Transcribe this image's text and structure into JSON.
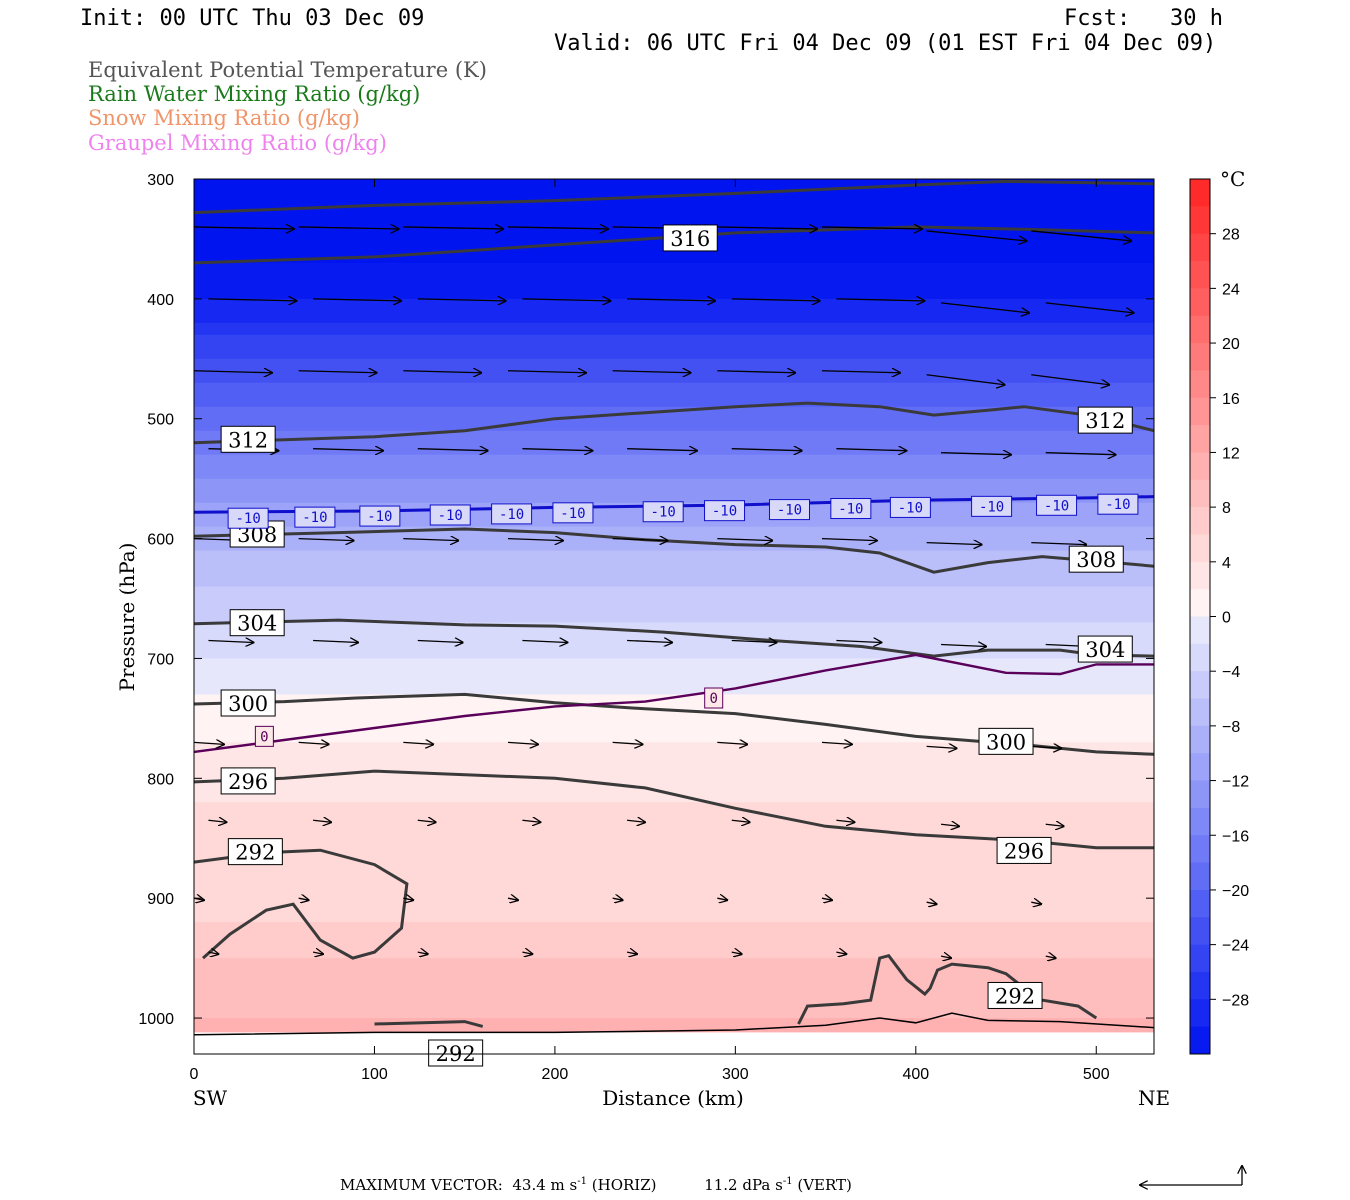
{
  "header": {
    "init": "Init: 00 UTC Thu 03 Dec 09",
    "fcst": "Fcst:   30 h",
    "valid": "Valid: 06 UTC Fri 04 Dec 09 (01 EST Fri 04 Dec 09)"
  },
  "legend": [
    {
      "label": "Equivalent Potential Temperature (K)",
      "color": "#555555"
    },
    {
      "label": "Rain Water Mixing Ratio (g/kg)",
      "color": "#1a7a1a"
    },
    {
      "label": "Snow Mixing Ratio (g/kg)",
      "color": "#f0946a"
    },
    {
      "label": "Graupel Mixing Ratio (g/kg)",
      "color": "#ee82ee"
    }
  ],
  "footer": {
    "max_vector_label": "MAXIMUM VECTOR:",
    "horiz_value": "43.4 m s",
    "horiz_exp": "-1",
    "horiz_tag": "(HORIZ)",
    "vert_value": "11.2 dPa s",
    "vert_exp": "-1",
    "vert_tag": "(VERT)"
  },
  "chart_data": {
    "type": "cross-section",
    "xlabel": "Distance (km)",
    "ylabel": "Pressure (hPa)",
    "x_left_label": "SW",
    "x_right_label": "NE",
    "xlim": [
      0,
      532
    ],
    "ylim": [
      1030,
      300
    ],
    "x_ticks": [
      0,
      100,
      200,
      300,
      400,
      500
    ],
    "y_ticks": [
      300,
      400,
      500,
      600,
      700,
      800,
      900,
      1000
    ],
    "colorbar": {
      "unit": "°C",
      "range": [
        -32,
        32
      ],
      "ticks": [
        28,
        24,
        20,
        16,
        12,
        8,
        4,
        0,
        -4,
        -8,
        -12,
        -16,
        -20,
        -24,
        -28
      ]
    },
    "temperature_shading": [
      {
        "p": 300,
        "t": -36
      },
      {
        "p": 340,
        "t": -34
      },
      {
        "p": 400,
        "t": -30
      },
      {
        "p": 450,
        "t": -24
      },
      {
        "p": 500,
        "t": -19
      },
      {
        "p": 550,
        "t": -14
      },
      {
        "p": 600,
        "t": -9
      },
      {
        "p": 650,
        "t": -5
      },
      {
        "p": 700,
        "t": -2
      },
      {
        "p": 750,
        "t": 1
      },
      {
        "p": 800,
        "t": 3
      },
      {
        "p": 850,
        "t": 5
      },
      {
        "p": 900,
        "t": 5
      },
      {
        "p": 950,
        "t": 8
      },
      {
        "p": 1000,
        "t": 10
      },
      {
        "p": 1030,
        "t": 12
      }
    ],
    "theta_e_contours": [
      {
        "label": "316",
        "points": [
          [
            0,
            328
          ],
          [
            100,
            322
          ],
          [
            200,
            318
          ],
          [
            300,
            312
          ],
          [
            400,
            305
          ],
          [
            450,
            302
          ],
          [
            532,
            304
          ]
        ]
      },
      {
        "label": "316",
        "label_at": [
          275,
          350
        ],
        "points": [
          [
            0,
            370
          ],
          [
            100,
            365
          ],
          [
            200,
            355
          ],
          [
            300,
            345
          ],
          [
            400,
            340
          ],
          [
            460,
            342
          ],
          [
            532,
            345
          ]
        ]
      },
      {
        "label": "312",
        "label_at": [
          30,
          518
        ],
        "points": [
          [
            0,
            520
          ],
          [
            100,
            515
          ],
          [
            150,
            510
          ],
          [
            200,
            500
          ],
          [
            250,
            495
          ],
          [
            300,
            490
          ],
          [
            340,
            487
          ],
          [
            380,
            490
          ],
          [
            410,
            497
          ],
          [
            440,
            493
          ],
          [
            460,
            490
          ],
          [
            500,
            498
          ],
          [
            532,
            510
          ]
        ]
      },
      {
        "label": "312",
        "label_at": [
          505,
          502
        ]
      },
      {
        "label": "308",
        "label_at": [
          35,
          597
        ],
        "points": [
          [
            0,
            598
          ],
          [
            80,
            595
          ],
          [
            150,
            592
          ],
          [
            200,
            595
          ],
          [
            250,
            601
          ],
          [
            300,
            605
          ],
          [
            350,
            607
          ],
          [
            380,
            612
          ],
          [
            410,
            628
          ],
          [
            440,
            620
          ],
          [
            470,
            615
          ],
          [
            510,
            620
          ],
          [
            532,
            623
          ]
        ]
      },
      {
        "label": "308",
        "label_at": [
          500,
          618
        ]
      },
      {
        "label": "304",
        "label_at": [
          35,
          671
        ],
        "points": [
          [
            0,
            671
          ],
          [
            80,
            668
          ],
          [
            150,
            672
          ],
          [
            200,
            673
          ],
          [
            260,
            678
          ],
          [
            320,
            685
          ],
          [
            370,
            690
          ],
          [
            410,
            698
          ],
          [
            440,
            693
          ],
          [
            480,
            693
          ],
          [
            500,
            697
          ],
          [
            532,
            698
          ]
        ]
      },
      {
        "label": "304",
        "label_at": [
          505,
          693
        ]
      },
      {
        "label": "300",
        "label_at": [
          30,
          738
        ],
        "points": [
          [
            0,
            738
          ],
          [
            50,
            736
          ],
          [
            90,
            733
          ],
          [
            150,
            730
          ],
          [
            200,
            737
          ],
          [
            250,
            742
          ],
          [
            300,
            746
          ],
          [
            350,
            755
          ],
          [
            400,
            765
          ],
          [
            460,
            772
          ],
          [
            500,
            778
          ],
          [
            532,
            780
          ]
        ]
      },
      {
        "label": "300",
        "label_at": [
          450,
          770
        ]
      },
      {
        "label": "296",
        "label_at": [
          30,
          803
        ],
        "points": [
          [
            0,
            803
          ],
          [
            50,
            800
          ],
          [
            100,
            794
          ],
          [
            200,
            800
          ],
          [
            250,
            808
          ],
          [
            300,
            825
          ],
          [
            350,
            840
          ],
          [
            400,
            847
          ],
          [
            460,
            852
          ],
          [
            500,
            858
          ],
          [
            532,
            858
          ]
        ]
      },
      {
        "label": "296",
        "label_at": [
          460,
          861
        ]
      },
      {
        "label": "292",
        "label_at": [
          34,
          862
        ],
        "points": [
          [
            0,
            870
          ],
          [
            40,
            862
          ],
          [
            70,
            860
          ],
          [
            100,
            872
          ],
          [
            118,
            888
          ],
          [
            115,
            925
          ],
          [
            100,
            945
          ],
          [
            88,
            950
          ],
          [
            70,
            935
          ],
          [
            55,
            905
          ],
          [
            40,
            910
          ],
          [
            20,
            930
          ],
          [
            5,
            950
          ]
        ]
      },
      {
        "label": "292",
        "label_at": [
          455,
          982
        ],
        "points": [
          [
            335,
            1005
          ],
          [
            340,
            990
          ],
          [
            360,
            988
          ],
          [
            375,
            985
          ],
          [
            380,
            950
          ],
          [
            385,
            948
          ],
          [
            395,
            968
          ],
          [
            405,
            980
          ],
          [
            408,
            975
          ],
          [
            412,
            960
          ],
          [
            420,
            955
          ],
          [
            440,
            958
          ],
          [
            450,
            963
          ],
          [
            460,
            975
          ],
          [
            470,
            985
          ],
          [
            490,
            990
          ],
          [
            500,
            1000
          ]
        ]
      },
      {
        "label": "292",
        "label_at": [
          145,
          1030
        ],
        "points": [
          [
            100,
            1005
          ],
          [
            150,
            1003
          ],
          [
            160,
            1007
          ]
        ]
      }
    ],
    "isotherm_labels": [
      {
        "label": "-10",
        "p": 578,
        "color": "#1010cc",
        "x": [
          30,
          67,
          103,
          142,
          176,
          210,
          260,
          294,
          330,
          364,
          397,
          442,
          478,
          512
        ]
      },
      {
        "label": "0",
        "color": "#5a005a",
        "at": [
          [
            39,
            765
          ],
          [
            288,
            733
          ]
        ]
      }
    ],
    "isotherm_m10_line": [
      [
        0,
        578
      ],
      [
        100,
        577
      ],
      [
        200,
        574
      ],
      [
        300,
        572
      ],
      [
        400,
        568
      ],
      [
        500,
        566
      ],
      [
        532,
        565
      ]
    ],
    "isotherm_0_line": [
      [
        0,
        778
      ],
      [
        50,
        768
      ],
      [
        100,
        758
      ],
      [
        150,
        748
      ],
      [
        200,
        740
      ],
      [
        250,
        736
      ],
      [
        300,
        725
      ],
      [
        350,
        710
      ],
      [
        400,
        697
      ],
      [
        450,
        712
      ],
      [
        480,
        713
      ],
      [
        500,
        705
      ],
      [
        532,
        705
      ]
    ]
  }
}
